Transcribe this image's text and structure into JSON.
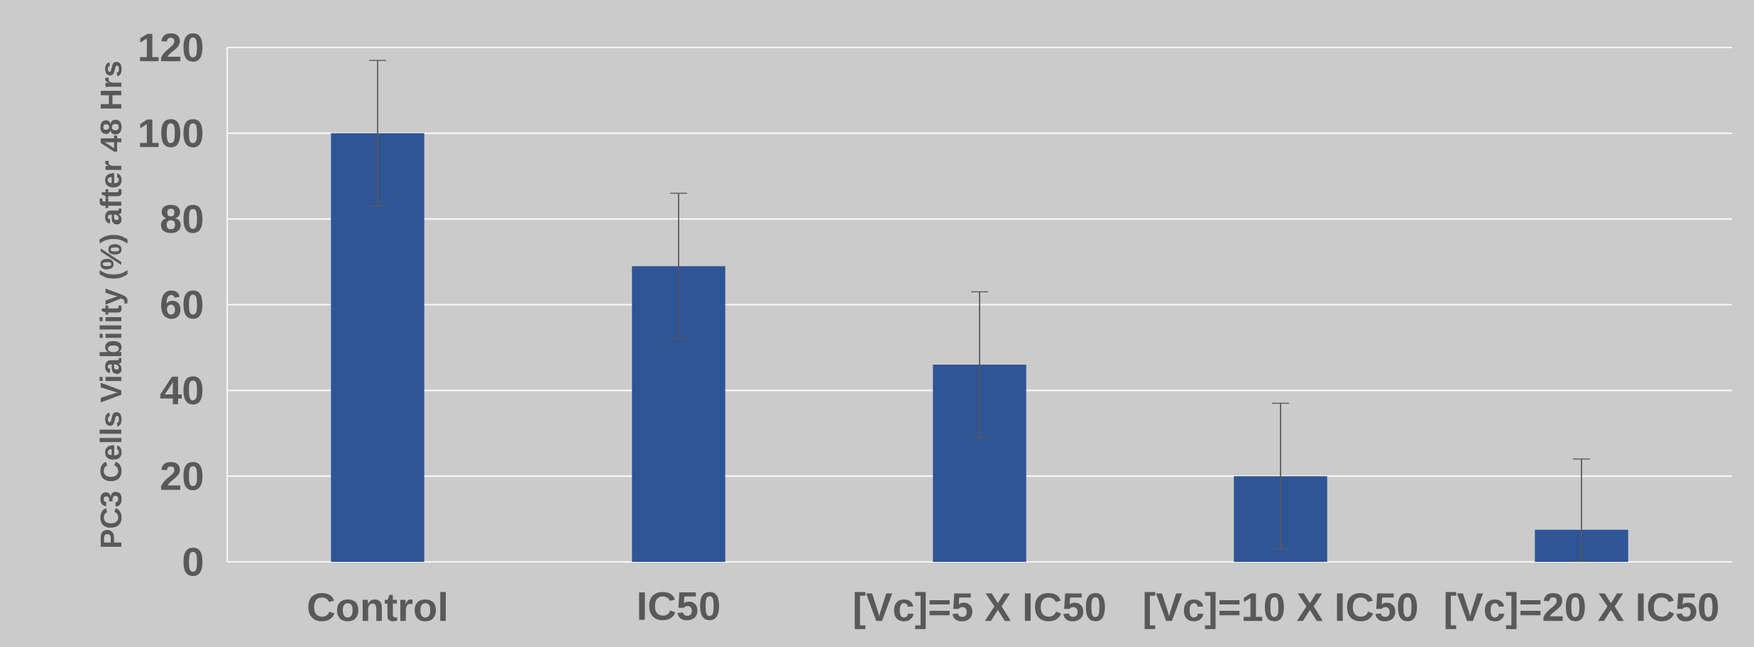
{
  "chart_data": {
    "type": "bar",
    "ylabel": "PC3 Cells Viability (%) after 48 Hrs",
    "categories": [
      "Control",
      "IC50",
      "[Vc]=5 X IC50",
      "[Vc]=10 X IC50",
      "[Vc]=20 X IC50"
    ],
    "values": [
      100,
      69,
      46,
      20,
      7.5
    ],
    "errors": [
      17,
      17,
      17,
      17,
      [
        0,
        24
      ]
    ],
    "color": "#2e5596",
    "ylim": [
      0,
      120
    ],
    "yticks": [
      0,
      20,
      40,
      60,
      80,
      100,
      120
    ],
    "grid": "y"
  }
}
